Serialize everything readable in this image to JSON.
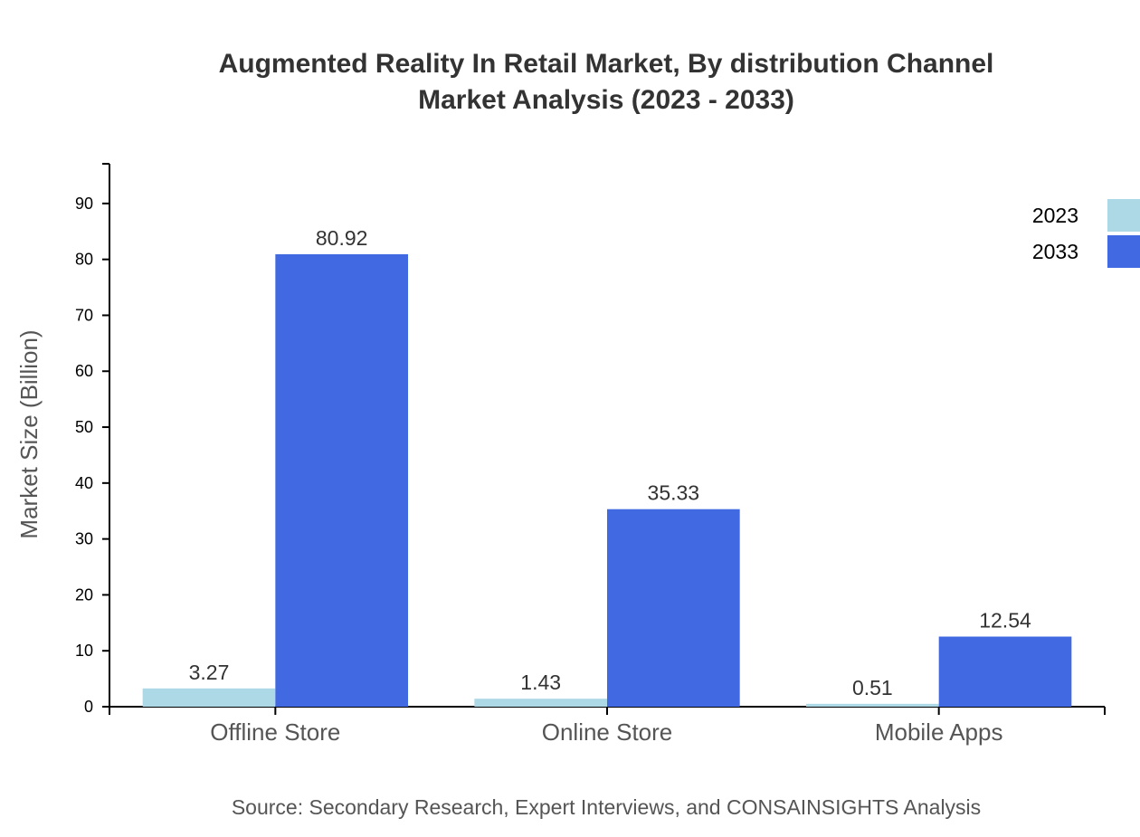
{
  "chart_data": {
    "type": "bar",
    "title": [
      "Augmented Reality In Retail Market, By distribution Channel",
      "Market Analysis (2023 - 2033)"
    ],
    "xlabel": "",
    "ylabel": "Market Size (Billion)",
    "categories": [
      "Offline Store",
      "Online Store",
      "Mobile Apps"
    ],
    "series": [
      {
        "name": "2023",
        "values": [
          3.27,
          1.43,
          0.51
        ],
        "color": "#add8e6"
      },
      {
        "name": "2033",
        "values": [
          80.92,
          35.33,
          12.54
        ],
        "color": "#4169e1"
      }
    ],
    "ylim": [
      0,
      97.1
    ],
    "yticks": [
      0,
      10,
      20,
      30,
      40,
      50,
      60,
      70,
      80,
      90
    ],
    "grid": false,
    "legend_placement": "top-right",
    "source": "Source: Secondary Research, Expert Interviews, and CONSAINSIGHTS Analysis"
  }
}
